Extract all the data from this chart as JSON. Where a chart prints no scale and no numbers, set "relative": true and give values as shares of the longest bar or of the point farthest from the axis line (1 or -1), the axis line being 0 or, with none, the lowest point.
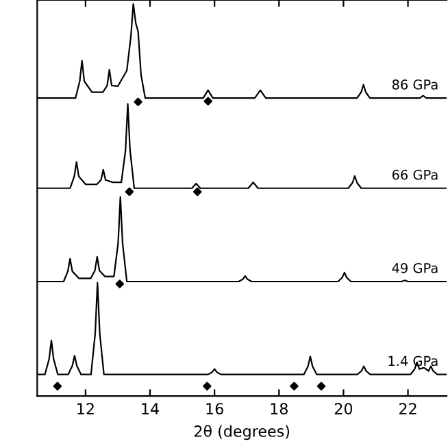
{
  "chart_data": {
    "type": "line",
    "relative": true,
    "xlabel": "2θ (degrees)",
    "xlim": [
      10.5,
      23.2
    ],
    "xticks": [
      12,
      14,
      16,
      18,
      20,
      22
    ],
    "grid": false,
    "marker": "none",
    "line_style": "solid",
    "series": [
      {
        "name": "86 GPa",
        "color": "#000000",
        "x": [
          10.5,
          11.69,
          11.82,
          11.89,
          11.96,
          12.2,
          12.54,
          12.67,
          12.74,
          12.81,
          13.0,
          13.28,
          13.41,
          13.48,
          13.56,
          13.63,
          13.72,
          13.85,
          15.65,
          15.8,
          15.95,
          17.25,
          17.42,
          17.59,
          20.42,
          20.55,
          20.62,
          20.69,
          20.82,
          22.37,
          22.47,
          22.57,
          23.2
        ],
        "values": [
          0.76,
          0.76,
          0.803,
          0.855,
          0.803,
          0.775,
          0.775,
          0.792,
          0.832,
          0.792,
          0.79,
          0.83,
          0.92,
          1.0,
          0.95,
          0.93,
          0.82,
          0.76,
          0.76,
          0.78,
          0.76,
          0.76,
          0.78,
          0.76,
          0.76,
          0.775,
          0.794,
          0.775,
          0.76,
          0.76,
          0.766,
          0.76,
          0.76
        ]
      },
      {
        "name": "66 GPa",
        "color": "#000000",
        "x": [
          10.5,
          11.52,
          11.65,
          11.72,
          11.79,
          12.0,
          12.35,
          12.48,
          12.55,
          12.62,
          12.85,
          13.11,
          13.24,
          13.31,
          13.38,
          13.51,
          15.3,
          15.43,
          15.56,
          17.05,
          17.2,
          17.35,
          20.15,
          20.28,
          20.35,
          20.42,
          20.55,
          23.2
        ],
        "values": [
          0.53,
          0.53,
          0.56,
          0.597,
          0.56,
          0.54,
          0.54,
          0.551,
          0.577,
          0.551,
          0.545,
          0.545,
          0.627,
          0.745,
          0.627,
          0.53,
          0.53,
          0.542,
          0.53,
          0.53,
          0.545,
          0.53,
          0.53,
          0.544,
          0.561,
          0.544,
          0.53,
          0.53
        ]
      },
      {
        "name": "49 GPa",
        "color": "#000000",
        "x": [
          10.5,
          11.32,
          11.45,
          11.52,
          11.59,
          11.8,
          12.16,
          12.29,
          12.36,
          12.43,
          12.6,
          12.88,
          13.01,
          13.08,
          13.15,
          13.28,
          16.75,
          16.88,
          16.95,
          17.02,
          17.15,
          19.83,
          19.96,
          20.03,
          20.1,
          20.23,
          21.8,
          21.9,
          22.0,
          23.2
        ],
        "values": [
          0.292,
          0.292,
          0.318,
          0.35,
          0.318,
          0.3,
          0.3,
          0.32,
          0.355,
          0.32,
          0.305,
          0.305,
          0.389,
          0.508,
          0.389,
          0.292,
          0.292,
          0.298,
          0.306,
          0.298,
          0.292,
          0.292,
          0.302,
          0.315,
          0.302,
          0.292,
          0.292,
          0.295,
          0.292,
          0.292
        ]
      },
      {
        "name": "1.4 GPa",
        "color": "#000000",
        "x": [
          10.5,
          10.74,
          10.87,
          10.94,
          11.01,
          11.14,
          11.46,
          11.59,
          11.66,
          11.73,
          11.86,
          12.17,
          12.3,
          12.37,
          12.44,
          12.57,
          15.8,
          15.93,
          16.0,
          16.07,
          16.2,
          18.77,
          18.9,
          18.97,
          19.04,
          19.17,
          20.43,
          20.56,
          20.63,
          20.7,
          20.83,
          22.08,
          22.21,
          22.28,
          22.35,
          22.5,
          22.64,
          22.71,
          22.78,
          22.91,
          23.2
        ],
        "values": [
          0.055,
          0.055,
          0.094,
          0.142,
          0.094,
          0.055,
          0.055,
          0.077,
          0.103,
          0.077,
          0.055,
          0.055,
          0.16,
          0.289,
          0.16,
          0.055,
          0.055,
          0.061,
          0.069,
          0.061,
          0.055,
          0.055,
          0.076,
          0.101,
          0.076,
          0.055,
          0.055,
          0.064,
          0.076,
          0.064,
          0.055,
          0.055,
          0.069,
          0.086,
          0.069,
          0.072,
          0.064,
          0.076,
          0.064,
          0.055,
          0.055
        ]
      },
      {
        "type": "scatter",
        "marker": "diamond",
        "color": "#000000",
        "x": [
          13.63,
          15.8,
          13.36,
          15.47,
          13.06,
          11.13,
          15.77,
          18.47,
          19.31
        ],
        "values": [
          0.75,
          0.752,
          0.521,
          0.521,
          0.286,
          0.025,
          0.025,
          0.025,
          0.025
        ]
      }
    ]
  }
}
